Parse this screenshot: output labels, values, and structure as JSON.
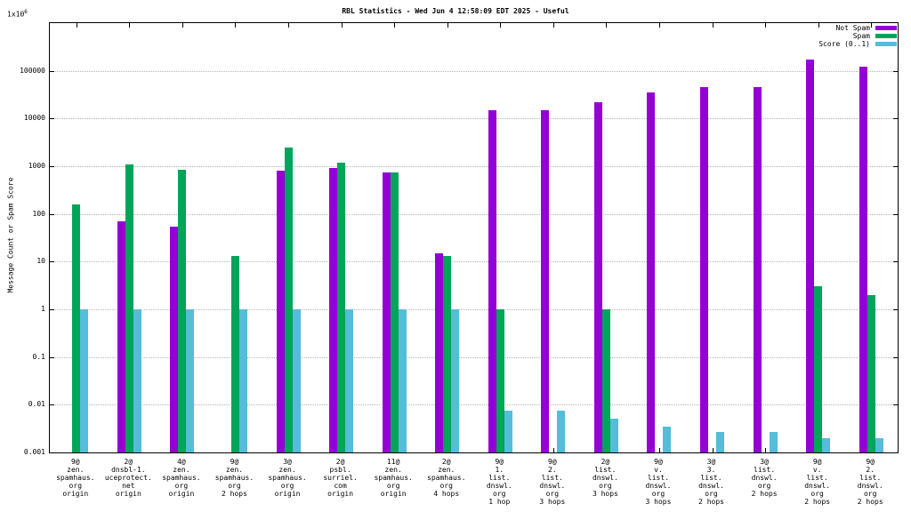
{
  "title": "RBL Statistics - Wed Jun  4 12:58:09 EDT 2025 - Useful",
  "ylabel": "Message Count or Spam Score",
  "chart_data": {
    "type": "bar",
    "log_y": true,
    "ylim": [
      0.001,
      1000000
    ],
    "grid": true,
    "legend_position": "top-right",
    "top_tick": {
      "base": "1x10",
      "exp": "6"
    },
    "yticks": [
      {
        "v": 100000,
        "label": "100000"
      },
      {
        "v": 10000,
        "label": "10000"
      },
      {
        "v": 1000,
        "label": "1000"
      },
      {
        "v": 100,
        "label": "100"
      },
      {
        "v": 10,
        "label": "10"
      },
      {
        "v": 1,
        "label": "1"
      },
      {
        "v": 0.1,
        "label": "0.1"
      },
      {
        "v": 0.01,
        "label": "0.01"
      },
      {
        "v": 0.001,
        "label": "0.001"
      }
    ],
    "categories_lines": [
      [
        "9@",
        "zen.",
        "spamhaus.",
        "org",
        "origin"
      ],
      [
        "2@",
        "dnsbl-1.",
        "uceprotect.",
        "net",
        "origin"
      ],
      [
        "4@",
        "zen.",
        "spamhaus.",
        "org",
        "origin"
      ],
      [
        "9@",
        "zen.",
        "spamhaus.",
        "org",
        "2 hops"
      ],
      [
        "3@",
        "zen.",
        "spamhaus.",
        "org",
        "origin"
      ],
      [
        "2@",
        "psbl.",
        "surriel.",
        "com",
        "origin"
      ],
      [
        "11@",
        "zen.",
        "spamhaus.",
        "org",
        "origin"
      ],
      [
        "2@",
        "zen.",
        "spamhaus.",
        "org",
        "4 hops"
      ],
      [
        "9@",
        "1.",
        "list.",
        "dnswl.",
        "org",
        "1 hop"
      ],
      [
        "9@",
        "2.",
        "list.",
        "dnswl.",
        "org",
        "3 hops"
      ],
      [
        "2@",
        "list.",
        "dnswl.",
        "org",
        "3 hops"
      ],
      [
        "9@",
        "v.",
        "list.",
        "dnswl.",
        "org",
        "3 hops"
      ],
      [
        "3@",
        "3.",
        "list.",
        "dnswl.",
        "org",
        "2 hops"
      ],
      [
        "3@",
        "list.",
        "dnswl.",
        "org",
        "2 hops"
      ],
      [
        "9@",
        "v.",
        "list.",
        "dnswl.",
        "org",
        "2 hops"
      ],
      [
        "9@",
        "2.",
        "list.",
        "dnswl.",
        "org",
        "2 hops"
      ]
    ],
    "series": [
      {
        "name": "Not Spam",
        "color": "#9400d3",
        "values": [
          null,
          70,
          55,
          null,
          800,
          900,
          750,
          15,
          15000,
          15000,
          22000,
          35000,
          45000,
          45000,
          170000,
          120000
        ]
      },
      {
        "name": "Spam",
        "color": "#00a45a",
        "values": [
          160,
          1100,
          850,
          13,
          2500,
          1200,
          750,
          13,
          1,
          null,
          1,
          null,
          null,
          null,
          3,
          2
        ]
      },
      {
        "name": "Score (0..1)",
        "color": "#55bcd9",
        "values": [
          1,
          1,
          1,
          1,
          1,
          1,
          1,
          1,
          0.0075,
          0.0075,
          0.005,
          0.0035,
          0.0027,
          0.0027,
          0.002,
          0.002
        ]
      }
    ]
  }
}
